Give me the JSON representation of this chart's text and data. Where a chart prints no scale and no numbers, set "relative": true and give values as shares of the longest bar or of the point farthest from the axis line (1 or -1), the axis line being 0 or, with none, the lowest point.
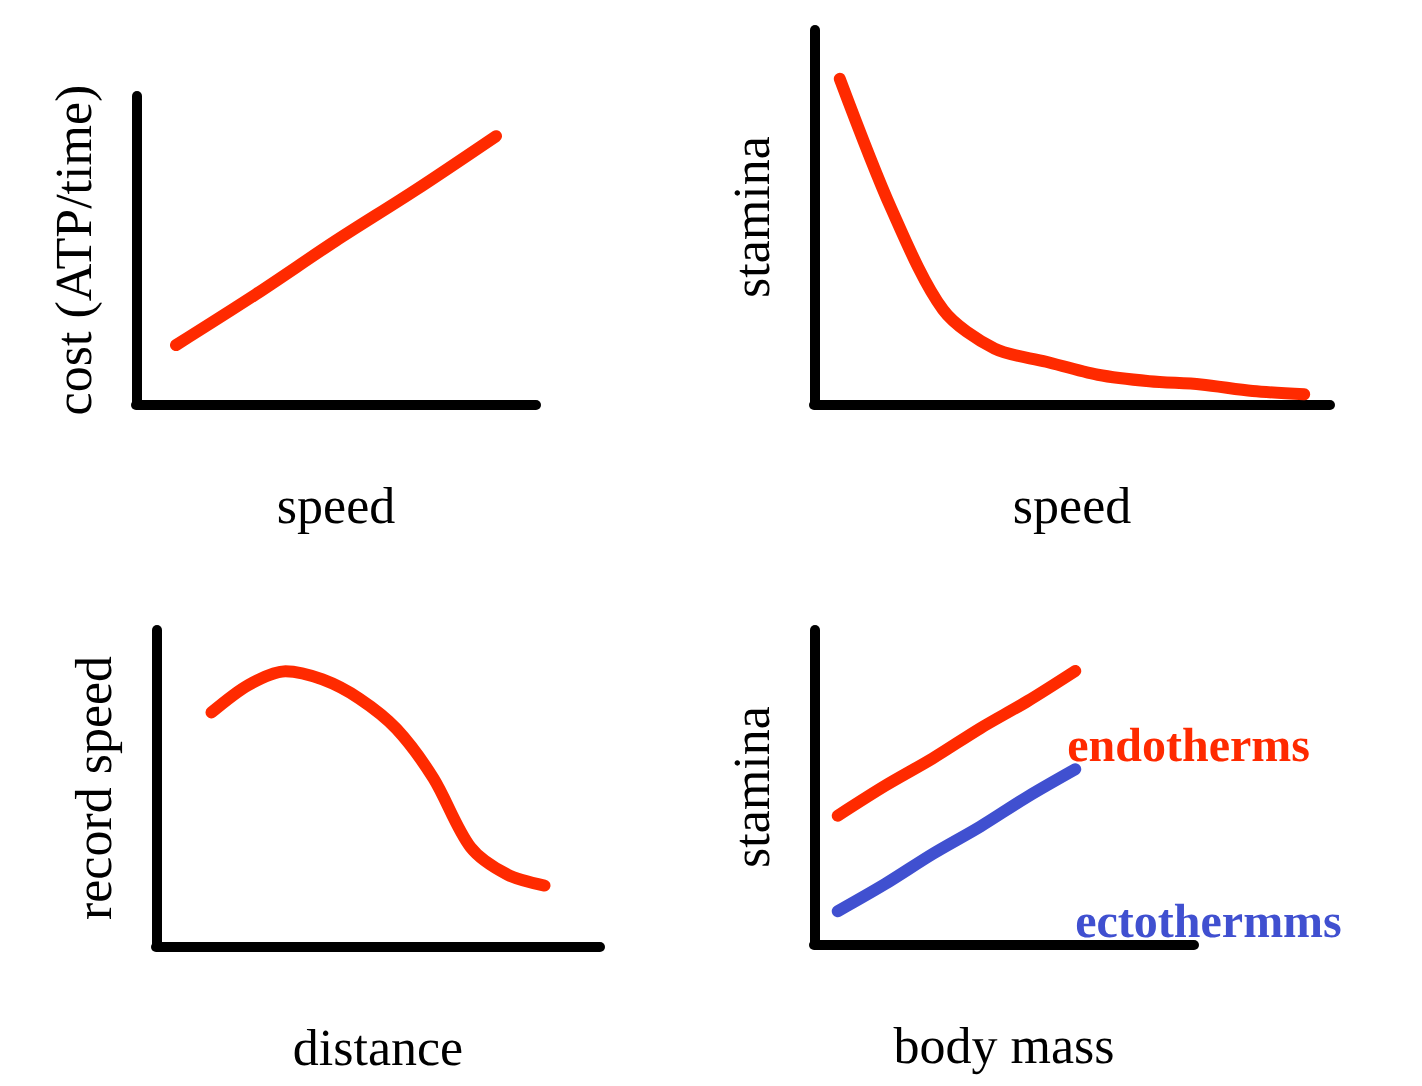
{
  "chart_data": [
    {
      "type": "line",
      "relative": true,
      "marker": "none",
      "xlabel": "speed",
      "ylabel": "cost (ATP/time)",
      "categories": [
        null,
        null,
        null,
        null,
        null
      ],
      "series": [
        {
          "color": "#ff2a00",
          "values": [
            0.22,
            0.41,
            0.61,
            0.8,
            1
          ]
        }
      ]
    },
    {
      "type": "line",
      "relative": true,
      "marker": "none",
      "xlabel": "speed",
      "ylabel": "stamina",
      "categories": [
        null,
        null,
        null,
        null,
        null,
        null,
        null,
        null,
        null,
        null
      ],
      "series": [
        {
          "color": "#ff2a00",
          "values": [
            1,
            0.6,
            0.29,
            0.17,
            0.13,
            0.09,
            0.07,
            0.06,
            0.04,
            0.03
          ]
        }
      ]
    },
    {
      "type": "line",
      "relative": true,
      "marker": "none",
      "xlabel": "distance",
      "ylabel": "record speed",
      "categories": [
        null,
        null,
        null,
        null,
        null,
        null,
        null,
        null,
        null,
        null,
        null,
        null
      ],
      "series": [
        {
          "color": "#ff2a00",
          "values": [
            null,
            0.85,
            0.95,
            1,
            0.97,
            0.9,
            0.79,
            0.61,
            0.36,
            0.26,
            0.22,
            null
          ]
        }
      ]
    },
    {
      "type": "line",
      "relative": true,
      "marker": "none",
      "xlabel": "body mass",
      "ylabel": "stamina",
      "categories": [
        null,
        null,
        null,
        null,
        null,
        null,
        null,
        null
      ],
      "series": [
        {
          "name": "endotherms",
          "color": "#ff2a00",
          "values": [
            0.47,
            0.58,
            0.68,
            0.79,
            0.89,
            1,
            null,
            null
          ]
        },
        {
          "name": "ectothermms",
          "color": "#4050d0",
          "values": [
            0.12,
            0.22,
            0.33,
            0.43,
            0.54,
            0.64,
            null,
            null
          ]
        }
      ]
    }
  ]
}
